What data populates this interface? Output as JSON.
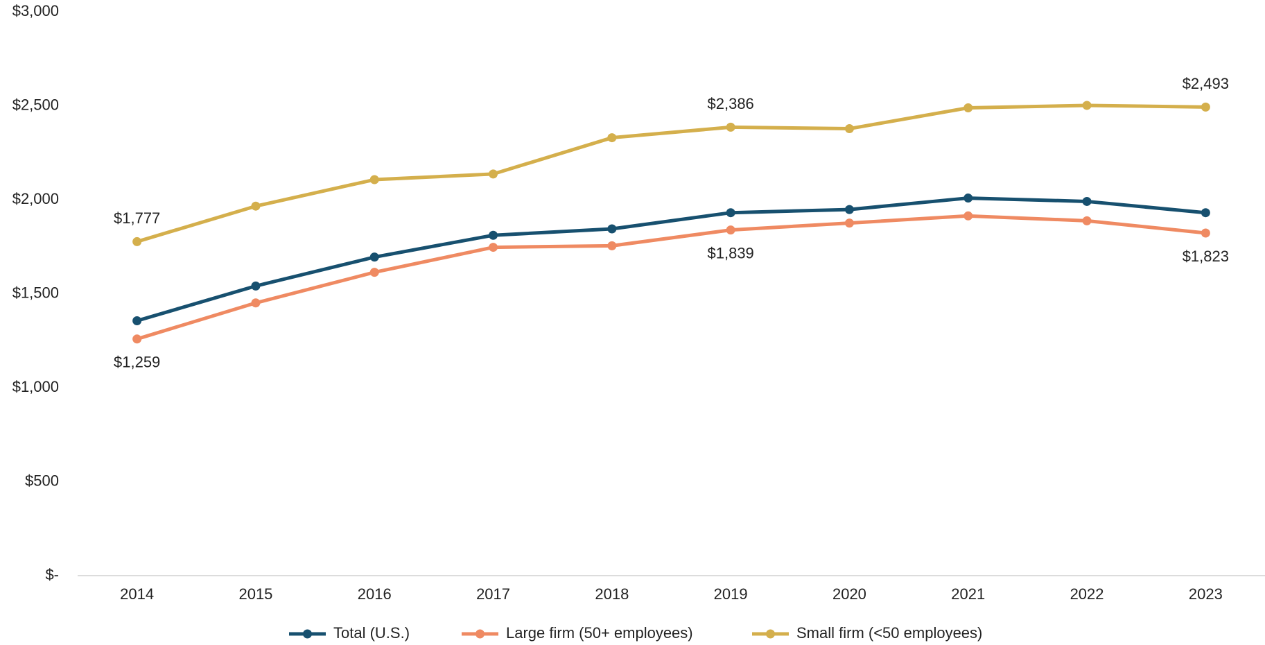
{
  "chart_data": {
    "type": "line",
    "categories": [
      "2014",
      "2015",
      "2016",
      "2017",
      "2018",
      "2019",
      "2020",
      "2021",
      "2022",
      "2023"
    ],
    "series": [
      {
        "name": "Total (U.S.)",
        "color": "#17506f",
        "values": [
          1356,
          1541,
          1695,
          1811,
          1845,
          1931,
          1948,
          2009,
          1991,
          1931
        ]
      },
      {
        "name": "Large firm (50+ employees)",
        "color": "#ef8a62",
        "values": [
          1259,
          1451,
          1614,
          1747,
          1755,
          1839,
          1876,
          1914,
          1888,
          1823
        ],
        "value_labels": [
          "$1,259",
          null,
          null,
          null,
          null,
          "$1,839",
          null,
          null,
          null,
          "$1,823"
        ]
      },
      {
        "name": "Small firm (<50 employees)",
        "color": "#d4af4c",
        "values": [
          1777,
          1966,
          2107,
          2137,
          2330,
          2386,
          2378,
          2489,
          2502,
          2493
        ],
        "value_labels": [
          "$1,777",
          null,
          null,
          null,
          null,
          "$2,386",
          null,
          null,
          null,
          "$2,493"
        ]
      }
    ],
    "ylim": [
      0,
      3000
    ],
    "yticks": [
      {
        "value": 0,
        "label": "$-"
      },
      {
        "value": 500,
        "label": "$500"
      },
      {
        "value": 1000,
        "label": "$1,000"
      },
      {
        "value": 1500,
        "label": "$1,500"
      },
      {
        "value": 2000,
        "label": "$2,000"
      },
      {
        "value": 2500,
        "label": "$2,500"
      },
      {
        "value": 3000,
        "label": "$3,000"
      }
    ],
    "grid": false,
    "legend": "bottom"
  }
}
